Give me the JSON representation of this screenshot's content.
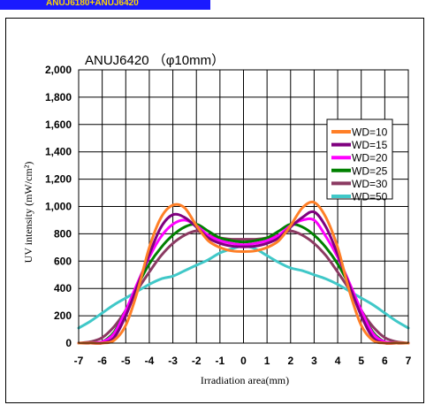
{
  "banner": {
    "text": "ANUJ6180+ANUJ6420",
    "bg": "#1a1aff",
    "fg": "#ffd700"
  },
  "chart_data": {
    "type": "line",
    "title": "ANUJ6420 （φ10mm）",
    "xlabel": "Irradiation area(mm)",
    "ylabel": "UV intensity (mW/cm²)",
    "xlim": [
      -7,
      7
    ],
    "ylim": [
      0,
      2000
    ],
    "xticks": [
      "-7",
      "-6",
      "-5",
      "-4",
      "-3",
      "-2",
      "-1",
      "0",
      "1",
      "2",
      "3",
      "4",
      "5",
      "6",
      "7"
    ],
    "yticks": [
      "0",
      "200",
      "400",
      "600",
      "800",
      "1,000",
      "1,200",
      "1,400",
      "1,600",
      "1,800",
      "2,000"
    ],
    "grid": true,
    "legend_position": "top-right",
    "x": [
      -7,
      -6.5,
      -6,
      -5.5,
      -5,
      -4.5,
      -4,
      -3.5,
      -3,
      -2.5,
      -2,
      -1.5,
      -1,
      -0.5,
      0,
      0.5,
      1,
      1.5,
      2,
      2.5,
      3,
      3.5,
      4,
      4.5,
      5,
      5.5,
      6,
      6.5,
      7
    ],
    "series": [
      {
        "name": "WD=10",
        "color": "#ff7f27",
        "values": [
          0,
          0,
          0,
          20,
          130,
          380,
          700,
          920,
          1010,
          990,
          860,
          750,
          700,
          675,
          670,
          675,
          700,
          750,
          860,
          990,
          1030,
          920,
          700,
          380,
          130,
          20,
          0,
          0,
          0
        ]
      },
      {
        "name": "WD=15",
        "color": "#7f007f",
        "values": [
          0,
          0,
          0,
          40,
          200,
          420,
          650,
          850,
          940,
          920,
          850,
          770,
          730,
          710,
          705,
          710,
          730,
          770,
          850,
          920,
          960,
          850,
          650,
          420,
          200,
          40,
          0,
          0,
          0
        ]
      },
      {
        "name": "WD=20",
        "color": "#ff00ff",
        "values": [
          0,
          0,
          10,
          70,
          240,
          440,
          630,
          780,
          870,
          900,
          860,
          790,
          750,
          730,
          720,
          730,
          750,
          790,
          860,
          900,
          900,
          780,
          630,
          440,
          240,
          70,
          10,
          0,
          0
        ]
      },
      {
        "name": "WD=25",
        "color": "#008000",
        "values": [
          0,
          0,
          10,
          80,
          240,
          420,
          580,
          700,
          790,
          850,
          870,
          820,
          770,
          750,
          740,
          750,
          770,
          820,
          870,
          850,
          790,
          700,
          580,
          420,
          240,
          80,
          10,
          0,
          0
        ]
      },
      {
        "name": "WD=30",
        "color": "#8b3a62",
        "values": [
          0,
          10,
          40,
          120,
          240,
          390,
          520,
          640,
          730,
          790,
          820,
          790,
          770,
          760,
          760,
          760,
          770,
          790,
          820,
          790,
          730,
          640,
          520,
          390,
          240,
          120,
          40,
          10,
          0
        ]
      },
      {
        "name": "WD=50",
        "color": "#40c8c8",
        "values": [
          110,
          160,
          220,
          280,
          330,
          380,
          430,
          470,
          490,
          530,
          570,
          610,
          660,
          690,
          710,
          690,
          640,
          590,
          550,
          530,
          500,
          470,
          430,
          380,
          330,
          280,
          220,
          160,
          110
        ]
      }
    ]
  }
}
